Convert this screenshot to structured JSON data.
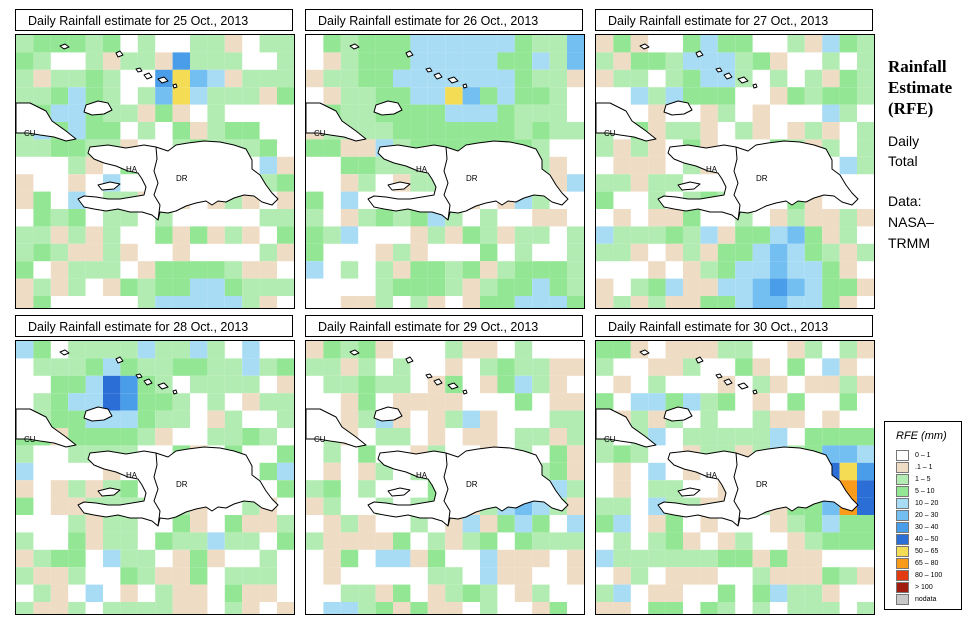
{
  "panels": [
    {
      "title": "Daily Rainfall estimate for  25 Oct., 2013",
      "seed": 25,
      "hotspots": [
        {
          "c": 8.9,
          "r": 2.4,
          "rad": 1.6,
          "peak": 80
        },
        {
          "c": 9.3,
          "r": 1.6,
          "rad": 0.9,
          "peak": 110
        }
      ],
      "bands": [
        {
          "c": 10,
          "r": 15.5,
          "rad": 3.5,
          "peak": 18
        },
        {
          "c": 3,
          "r": 4,
          "rad": 2.5,
          "peak": 14
        }
      ]
    },
    {
      "title": "Daily Rainfall estimate for  26 Oct., 2013",
      "seed": 26,
      "hotspots": [
        {
          "c": 8.3,
          "r": 2.9,
          "rad": 1.0,
          "peak": 85
        },
        {
          "c": 15.3,
          "r": 0.5,
          "rad": 1.0,
          "peak": 58
        }
      ],
      "bands": [
        {
          "c": 8,
          "r": 1.5,
          "rad": 7,
          "peak": 14
        },
        {
          "c": 13,
          "r": 15,
          "rad": 3,
          "peak": 16
        }
      ]
    },
    {
      "title": "Daily Rainfall estimate for  27 Oct., 2013",
      "seed": 27,
      "hotspots": [
        {
          "c": 10.5,
          "r": 11.5,
          "rad": 1.2,
          "peak": 45
        }
      ],
      "bands": [
        {
          "c": 10,
          "r": 14,
          "rad": 4,
          "peak": 28
        },
        {
          "c": 6,
          "r": 1.5,
          "rad": 2.5,
          "peak": 18
        }
      ]
    },
    {
      "title": "Daily Rainfall estimate for  28 Oct., 2013",
      "seed": 28,
      "hotspots": [
        {
          "c": 5.4,
          "r": 2.6,
          "rad": 1.3,
          "peak": 85
        }
      ],
      "bands": [
        {
          "c": 5,
          "r": 3,
          "rad": 3.5,
          "peak": 18
        }
      ]
    },
    {
      "title": "Daily Rainfall estimate for  29 Oct., 2013",
      "seed": 29,
      "hotspots": [
        {
          "c": 12.2,
          "r": 8.5,
          "rad": 1.0,
          "peak": 55
        }
      ],
      "bands": [
        {
          "c": 12,
          "r": 9,
          "rad": 2.2,
          "peak": 18
        }
      ]
    },
    {
      "title": "Daily Rainfall estimate for  30 Oct., 2013",
      "seed": 30,
      "hotspots": [
        {
          "c": 13.8,
          "r": 7.6,
          "rad": 2.4,
          "peak": 82
        },
        {
          "c": 14.3,
          "r": 8.8,
          "rad": 1.2,
          "peak": 105
        }
      ],
      "bands": [
        {
          "c": 14,
          "r": 8,
          "rad": 4,
          "peak": 18
        }
      ]
    }
  ],
  "country_labels": {
    "cuba": "CU",
    "haiti": "HA",
    "dominican_republic": "DR"
  },
  "side": {
    "title_lines": [
      "Rainfall",
      "Estimate",
      "(RFE)"
    ],
    "daily_lines": [
      "Daily",
      "Total"
    ],
    "data_lines": [
      "Data:",
      "NASA–",
      "TRMM"
    ]
  },
  "legend": {
    "title": "RFE (mm)",
    "items": [
      {
        "label": "0 – 1",
        "color": "#ffffff"
      },
      {
        "label": ".1 – 1",
        "color": "#eedcc4"
      },
      {
        "label": "1 – 5",
        "color": "#b2ecb2"
      },
      {
        "label": "5 – 10",
        "color": "#93e693"
      },
      {
        "label": "10 – 20",
        "color": "#a8dcf5"
      },
      {
        "label": "20 – 30",
        "color": "#73bff2"
      },
      {
        "label": "30 – 40",
        "color": "#4a9de8"
      },
      {
        "label": "40 – 50",
        "color": "#2b6fd6"
      },
      {
        "label": "50 – 65",
        "color": "#f5dc55"
      },
      {
        "label": "65 – 80",
        "color": "#f89b1a"
      },
      {
        "label": "80 – 100",
        "color": "#e23b12"
      },
      {
        "label": "> 100",
        "color": "#a01c10"
      },
      {
        "label": "nodata",
        "color": "#c8c8c8"
      }
    ]
  }
}
